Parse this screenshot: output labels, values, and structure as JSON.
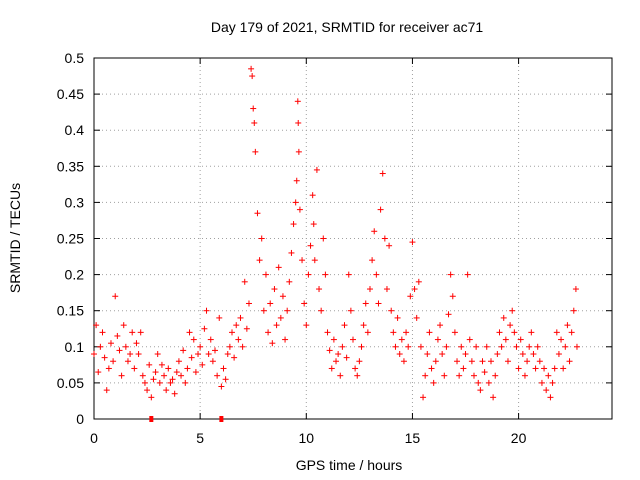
{
  "chart_data": {
    "type": "scatter",
    "title": "Day 179 of 2021, SRMTID for receiver ac71",
    "xlabel": "GPS time / hours",
    "ylabel": "SRMTID / TECUs",
    "xlim": [
      0,
      24.4
    ],
    "ylim": [
      0,
      0.5
    ],
    "x_ticks": [
      0,
      5,
      10,
      15,
      20
    ],
    "x_tick_labels": [
      "0",
      "5",
      "10",
      "15",
      "20"
    ],
    "y_ticks": [
      0,
      0.05,
      0.1,
      0.15,
      0.2,
      0.25,
      0.3,
      0.35,
      0.4,
      0.45,
      0.5
    ],
    "y_tick_labels": [
      "0",
      "0.05",
      "0.1",
      "0.15",
      "0.2",
      "0.25",
      "0.3",
      "0.35",
      "0.4",
      "0.45",
      "0.5"
    ],
    "grid": true,
    "marker": "+",
    "color": "#ff0000",
    "series": [
      {
        "name": "SRMTID",
        "points": [
          [
            0.0,
            0.09
          ],
          [
            0.1,
            0.13
          ],
          [
            0.2,
            0.065
          ],
          [
            0.3,
            0.1
          ],
          [
            0.4,
            0.12
          ],
          [
            0.5,
            0.085
          ],
          [
            0.6,
            0.04
          ],
          [
            0.7,
            0.07
          ],
          [
            0.8,
            0.105
          ],
          [
            0.9,
            0.08
          ],
          [
            1.0,
            0.17
          ],
          [
            1.1,
            0.115
          ],
          [
            1.2,
            0.095
          ],
          [
            1.3,
            0.06
          ],
          [
            1.4,
            0.13
          ],
          [
            1.5,
            0.1
          ],
          [
            1.6,
            0.08
          ],
          [
            1.7,
            0.09
          ],
          [
            1.8,
            0.12
          ],
          [
            1.9,
            0.07
          ],
          [
            2.0,
            0.105
          ],
          [
            2.1,
            0.09
          ],
          [
            2.2,
            0.12
          ],
          [
            2.3,
            0.06
          ],
          [
            2.4,
            0.05
          ],
          [
            2.5,
            0.04
          ],
          [
            2.6,
            0.075
          ],
          [
            2.7,
            0.03
          ],
          [
            2.8,
            0.055
          ],
          [
            2.9,
            0.065
          ],
          [
            3.0,
            0.09
          ],
          [
            3.1,
            0.05
          ],
          [
            3.2,
            0.075
          ],
          [
            3.3,
            0.06
          ],
          [
            3.4,
            0.04
          ],
          [
            3.5,
            0.07
          ],
          [
            3.6,
            0.05
          ],
          [
            3.7,
            0.055
          ],
          [
            3.8,
            0.035
          ],
          [
            3.9,
            0.065
          ],
          [
            4.0,
            0.08
          ],
          [
            4.1,
            0.06
          ],
          [
            4.2,
            0.095
          ],
          [
            4.3,
            0.05
          ],
          [
            4.4,
            0.07
          ],
          [
            4.5,
            0.12
          ],
          [
            4.6,
            0.085
          ],
          [
            4.7,
            0.11
          ],
          [
            4.8,
            0.065
          ],
          [
            4.9,
            0.09
          ],
          [
            5.0,
            0.1
          ],
          [
            5.1,
            0.075
          ],
          [
            5.2,
            0.125
          ],
          [
            5.3,
            0.15
          ],
          [
            5.4,
            0.09
          ],
          [
            5.5,
            0.11
          ],
          [
            5.6,
            0.08
          ],
          [
            5.7,
            0.095
          ],
          [
            5.8,
            0.06
          ],
          [
            5.9,
            0.14
          ],
          [
            6.0,
            0.045
          ],
          [
            6.1,
            0.07
          ],
          [
            6.2,
            0.055
          ],
          [
            6.3,
            0.09
          ],
          [
            6.4,
            0.1
          ],
          [
            6.5,
            0.12
          ],
          [
            6.6,
            0.085
          ],
          [
            6.7,
            0.13
          ],
          [
            6.8,
            0.11
          ],
          [
            6.9,
            0.14
          ],
          [
            7.0,
            0.1
          ],
          [
            7.1,
            0.19
          ],
          [
            7.2,
            0.125
          ],
          [
            7.3,
            0.16
          ],
          [
            7.4,
            0.485
          ],
          [
            7.45,
            0.475
          ],
          [
            7.5,
            0.43
          ],
          [
            7.55,
            0.41
          ],
          [
            7.6,
            0.37
          ],
          [
            7.7,
            0.285
          ],
          [
            7.8,
            0.22
          ],
          [
            7.9,
            0.25
          ],
          [
            8.0,
            0.15
          ],
          [
            8.1,
            0.2
          ],
          [
            8.2,
            0.12
          ],
          [
            8.3,
            0.16
          ],
          [
            8.4,
            0.105
          ],
          [
            8.5,
            0.18
          ],
          [
            8.6,
            0.13
          ],
          [
            8.7,
            0.21
          ],
          [
            8.8,
            0.14
          ],
          [
            8.9,
            0.17
          ],
          [
            9.0,
            0.11
          ],
          [
            9.1,
            0.15
          ],
          [
            9.2,
            0.19
          ],
          [
            9.3,
            0.23
          ],
          [
            9.4,
            0.27
          ],
          [
            9.5,
            0.3
          ],
          [
            9.55,
            0.33
          ],
          [
            9.6,
            0.44
          ],
          [
            9.62,
            0.41
          ],
          [
            9.65,
            0.37
          ],
          [
            9.7,
            0.29
          ],
          [
            9.8,
            0.22
          ],
          [
            9.9,
            0.16
          ],
          [
            10.0,
            0.13
          ],
          [
            10.1,
            0.2
          ],
          [
            10.2,
            0.24
          ],
          [
            10.3,
            0.31
          ],
          [
            10.35,
            0.27
          ],
          [
            10.4,
            0.22
          ],
          [
            10.5,
            0.345
          ],
          [
            10.6,
            0.18
          ],
          [
            10.7,
            0.15
          ],
          [
            10.8,
            0.25
          ],
          [
            10.9,
            0.2
          ],
          [
            11.0,
            0.12
          ],
          [
            11.1,
            0.095
          ],
          [
            11.2,
            0.07
          ],
          [
            11.3,
            0.11
          ],
          [
            11.4,
            0.08
          ],
          [
            11.5,
            0.09
          ],
          [
            11.6,
            0.06
          ],
          [
            11.7,
            0.1
          ],
          [
            11.8,
            0.13
          ],
          [
            11.9,
            0.085
          ],
          [
            12.0,
            0.2
          ],
          [
            12.1,
            0.15
          ],
          [
            12.2,
            0.11
          ],
          [
            12.3,
            0.07
          ],
          [
            12.4,
            0.06
          ],
          [
            12.5,
            0.08
          ],
          [
            12.6,
            0.1
          ],
          [
            12.7,
            0.13
          ],
          [
            12.8,
            0.16
          ],
          [
            12.9,
            0.12
          ],
          [
            13.0,
            0.18
          ],
          [
            13.1,
            0.22
          ],
          [
            13.2,
            0.26
          ],
          [
            13.3,
            0.2
          ],
          [
            13.4,
            0.16
          ],
          [
            13.5,
            0.29
          ],
          [
            13.6,
            0.34
          ],
          [
            13.7,
            0.25
          ],
          [
            13.8,
            0.18
          ],
          [
            13.9,
            0.24
          ],
          [
            14.0,
            0.15
          ],
          [
            14.1,
            0.12
          ],
          [
            14.2,
            0.1
          ],
          [
            14.3,
            0.14
          ],
          [
            14.4,
            0.09
          ],
          [
            14.5,
            0.11
          ],
          [
            14.6,
            0.08
          ],
          [
            14.7,
            0.12
          ],
          [
            14.8,
            0.1
          ],
          [
            14.9,
            0.17
          ],
          [
            15.0,
            0.245
          ],
          [
            15.1,
            0.18
          ],
          [
            15.2,
            0.14
          ],
          [
            15.3,
            0.19
          ],
          [
            15.4,
            0.1
          ],
          [
            15.5,
            0.03
          ],
          [
            15.6,
            0.06
          ],
          [
            15.7,
            0.09
          ],
          [
            15.8,
            0.12
          ],
          [
            15.9,
            0.07
          ],
          [
            16.0,
            0.05
          ],
          [
            16.1,
            0.08
          ],
          [
            16.2,
            0.11
          ],
          [
            16.3,
            0.13
          ],
          [
            16.4,
            0.09
          ],
          [
            16.5,
            0.06
          ],
          [
            16.6,
            0.1
          ],
          [
            16.7,
            0.145
          ],
          [
            16.8,
            0.2
          ],
          [
            16.9,
            0.17
          ],
          [
            17.0,
            0.12
          ],
          [
            17.1,
            0.08
          ],
          [
            17.2,
            0.06
          ],
          [
            17.3,
            0.1
          ],
          [
            17.4,
            0.07
          ],
          [
            17.5,
            0.09
          ],
          [
            17.6,
            0.2
          ],
          [
            17.7,
            0.11
          ],
          [
            17.8,
            0.08
          ],
          [
            17.9,
            0.06
          ],
          [
            18.0,
            0.1
          ],
          [
            18.1,
            0.05
          ],
          [
            18.2,
            0.04
          ],
          [
            18.3,
            0.08
          ],
          [
            18.4,
            0.065
          ],
          [
            18.5,
            0.1
          ],
          [
            18.6,
            0.05
          ],
          [
            18.7,
            0.08
          ],
          [
            18.8,
            0.03
          ],
          [
            18.9,
            0.06
          ],
          [
            19.0,
            0.09
          ],
          [
            19.1,
            0.12
          ],
          [
            19.2,
            0.1
          ],
          [
            19.3,
            0.14
          ],
          [
            19.4,
            0.11
          ],
          [
            19.5,
            0.08
          ],
          [
            19.6,
            0.13
          ],
          [
            19.7,
            0.15
          ],
          [
            19.8,
            0.12
          ],
          [
            19.9,
            0.1
          ],
          [
            20.0,
            0.07
          ],
          [
            20.1,
            0.11
          ],
          [
            20.2,
            0.09
          ],
          [
            20.3,
            0.06
          ],
          [
            20.4,
            0.08
          ],
          [
            20.5,
            0.1
          ],
          [
            20.6,
            0.12
          ],
          [
            20.7,
            0.09
          ],
          [
            20.8,
            0.07
          ],
          [
            20.9,
            0.1
          ],
          [
            21.0,
            0.08
          ],
          [
            21.1,
            0.05
          ],
          [
            21.2,
            0.07
          ],
          [
            21.3,
            0.04
          ],
          [
            21.4,
            0.06
          ],
          [
            21.5,
            0.03
          ],
          [
            21.6,
            0.05
          ],
          [
            21.7,
            0.07
          ],
          [
            21.8,
            0.12
          ],
          [
            21.9,
            0.09
          ],
          [
            22.0,
            0.11
          ],
          [
            22.1,
            0.07
          ],
          [
            22.2,
            0.1
          ],
          [
            22.3,
            0.13
          ],
          [
            22.4,
            0.08
          ],
          [
            22.5,
            0.12
          ],
          [
            22.6,
            0.15
          ],
          [
            22.7,
            0.18
          ],
          [
            22.75,
            0.1
          ]
        ]
      }
    ],
    "markers_on_axis": [
      2.7,
      6.0
    ]
  }
}
